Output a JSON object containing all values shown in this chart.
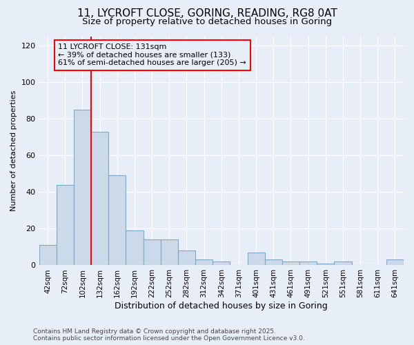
{
  "title_line1": "11, LYCROFT CLOSE, GORING, READING, RG8 0AT",
  "title_line2": "Size of property relative to detached houses in Goring",
  "xlabel": "Distribution of detached houses by size in Goring",
  "ylabel": "Number of detached properties",
  "bar_color": "#ccd9e8",
  "bar_edge_color": "#7aaacb",
  "bg_color": "#e8eef8",
  "grid_color": "#ffffff",
  "categories": [
    "42sqm",
    "72sqm",
    "102sqm",
    "132sqm",
    "162sqm",
    "192sqm",
    "222sqm",
    "252sqm",
    "282sqm",
    "312sqm",
    "342sqm",
    "371sqm",
    "401sqm",
    "431sqm",
    "461sqm",
    "491sqm",
    "521sqm",
    "551sqm",
    "581sqm",
    "611sqm",
    "641sqm"
  ],
  "values": [
    11,
    44,
    85,
    73,
    49,
    19,
    14,
    14,
    8,
    3,
    2,
    0,
    7,
    3,
    2,
    2,
    1,
    2,
    0,
    0,
    3
  ],
  "ylim": [
    0,
    125
  ],
  "yticks": [
    0,
    20,
    40,
    60,
    80,
    100,
    120
  ],
  "red_line_index": 3,
  "annotation_text": "11 LYCROFT CLOSE: 131sqm\n← 39% of detached houses are smaller (133)\n61% of semi-detached houses are larger (205) →",
  "footnote": "Contains HM Land Registry data © Crown copyright and database right 2025.\nContains public sector information licensed under the Open Government Licence v3.0."
}
